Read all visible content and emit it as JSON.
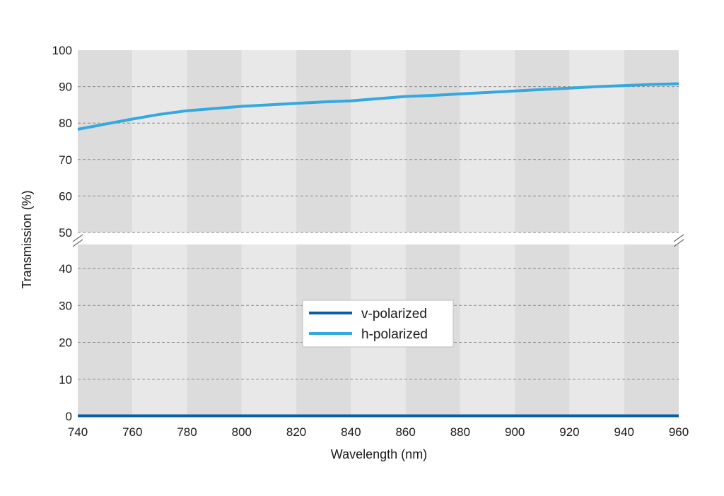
{
  "chart_data": {
    "type": "line",
    "xlabel": "Wavelength (nm)",
    "ylabel": "Transmission (%)",
    "xlim": [
      740,
      960
    ],
    "x_ticks": [
      740,
      760,
      780,
      800,
      820,
      840,
      860,
      880,
      900,
      920,
      940,
      960
    ],
    "y_ticks": [
      0,
      10,
      20,
      30,
      40,
      50,
      60,
      70,
      80,
      90,
      100
    ],
    "y_axis_break": [
      45,
      50
    ],
    "ylim": [
      0,
      100
    ],
    "grid": "horizontal dashed",
    "background": "alternating vertical bands every 20 nm",
    "legend_position": "center",
    "series": [
      {
        "name": "v-polarized",
        "color": "#0a5ea8",
        "x": [
          740,
          760,
          780,
          800,
          820,
          840,
          860,
          880,
          900,
          920,
          940,
          960
        ],
        "values": [
          0.1,
          0.1,
          0.1,
          0.1,
          0.1,
          0.1,
          0.1,
          0.1,
          0.1,
          0.1,
          0.1,
          0.1
        ]
      },
      {
        "name": "h-polarized",
        "color": "#34a8df",
        "x": [
          740,
          750,
          760,
          770,
          780,
          790,
          800,
          810,
          820,
          830,
          840,
          850,
          860,
          870,
          880,
          890,
          900,
          910,
          920,
          930,
          940,
          950,
          960
        ],
        "values": [
          78.3,
          79.7,
          81.1,
          82.4,
          83.4,
          84.0,
          84.6,
          85.0,
          85.4,
          85.8,
          86.1,
          86.7,
          87.3,
          87.6,
          88.0,
          88.4,
          88.8,
          89.2,
          89.6,
          90.0,
          90.3,
          90.6,
          90.8
        ]
      }
    ]
  }
}
